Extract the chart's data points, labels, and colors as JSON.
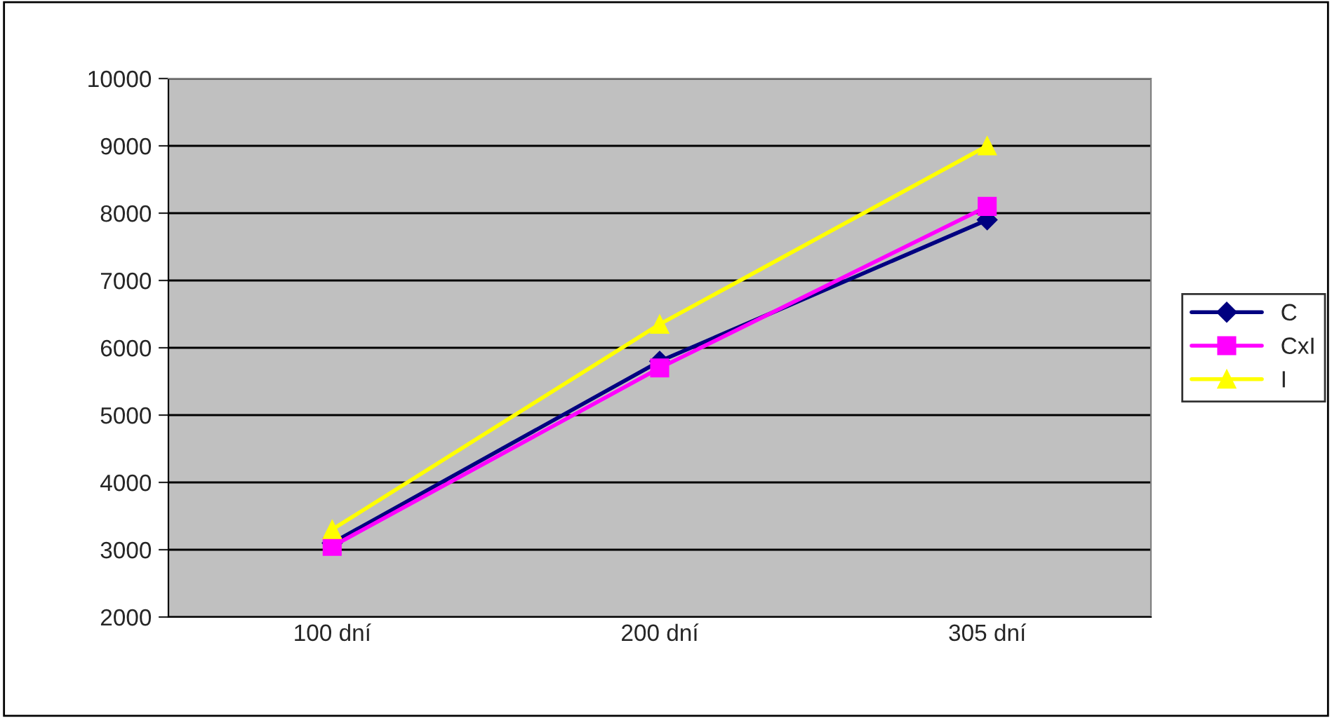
{
  "chart_data": {
    "type": "line",
    "categories": [
      "100 dní",
      "200 dní",
      "305 dní"
    ],
    "series": [
      {
        "name": "C",
        "color": "#000080",
        "values": [
          3100,
          5800,
          7900
        ],
        "marker": "diamond"
      },
      {
        "name": "CxI",
        "color": "#ff00ff",
        "values": [
          3050,
          5700,
          8100
        ],
        "marker": "square"
      },
      {
        "name": "I",
        "color": "#ffff00",
        "values": [
          3300,
          6350,
          9000
        ],
        "marker": "triangle"
      }
    ],
    "ylim": [
      2000,
      10000
    ],
    "yticks": [
      2000,
      3000,
      4000,
      5000,
      6000,
      7000,
      8000,
      9000,
      10000
    ],
    "grid": "y",
    "legend": "right",
    "line_style": "solid"
  }
}
